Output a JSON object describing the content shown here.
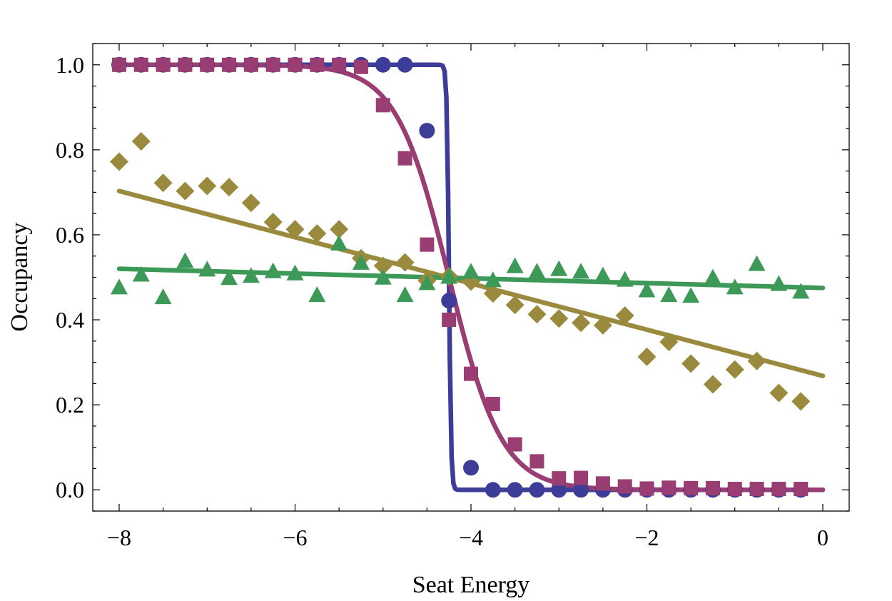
{
  "chart_data": {
    "type": "scatter",
    "title": "",
    "xlabel": "Seat Energy",
    "ylabel": "Occupancy",
    "xlim": [
      -8.3,
      0.3
    ],
    "ylim": [
      -0.05,
      1.05
    ],
    "xticks": [
      -8,
      -6,
      -4,
      -2,
      0
    ],
    "xtick_labels": [
      "−8",
      "−6",
      "−4",
      "−2",
      "0"
    ],
    "yticks": [
      0.0,
      0.2,
      0.4,
      0.6,
      0.8,
      1.0
    ],
    "ytick_labels": [
      "0.0",
      "0.2",
      "0.4",
      "0.6",
      "0.8",
      "1.0"
    ],
    "grid": false,
    "legend": "none",
    "frame_ticks": "all sides, major and minor",
    "series": [
      {
        "marker": "circle",
        "color": "#3d3d99",
        "points": [
          [
            -8,
            1.0
          ],
          [
            -7.75,
            1.0
          ],
          [
            -7.5,
            1.0
          ],
          [
            -7.25,
            1.0
          ],
          [
            -7,
            1.0
          ],
          [
            -6.75,
            1.0
          ],
          [
            -6.5,
            1.0
          ],
          [
            -6.25,
            1.0
          ],
          [
            -6,
            1.0
          ],
          [
            -5.75,
            1.0
          ],
          [
            -5.5,
            1.0
          ],
          [
            -5.25,
            1.0
          ],
          [
            -5,
            1.0
          ],
          [
            -4.75,
            1.0
          ],
          [
            -4.5,
            0.845
          ],
          [
            -4.25,
            0.445
          ],
          [
            -4,
            0.052
          ],
          [
            -3.75,
            0.0
          ],
          [
            -3.5,
            0.0
          ],
          [
            -3.25,
            0.0
          ],
          [
            -3,
            0.0
          ],
          [
            -2.75,
            0.0
          ],
          [
            -2.5,
            0.0
          ],
          [
            -2.25,
            0.0
          ],
          [
            -2,
            0.0
          ],
          [
            -1.75,
            0.0
          ],
          [
            -1.5,
            0.0
          ],
          [
            -1.25,
            0.0
          ],
          [
            -1,
            0.0
          ],
          [
            -0.75,
            0.0
          ],
          [
            -0.5,
            0.0
          ],
          [
            -0.25,
            0.0
          ]
        ],
        "fit": {
          "kind": "logistic",
          "x0": -4.25,
          "kT": 0.012,
          "top": 1.0,
          "bottom": 0.0,
          "xrange": [
            -8,
            0
          ]
        }
      },
      {
        "marker": "square",
        "color": "#993d73",
        "points": [
          [
            -8,
            1.0
          ],
          [
            -7.75,
            1.0
          ],
          [
            -7.5,
            1.0
          ],
          [
            -7.25,
            1.0
          ],
          [
            -7,
            1.0
          ],
          [
            -6.75,
            1.0
          ],
          [
            -6.5,
            1.0
          ],
          [
            -6.25,
            1.0
          ],
          [
            -6,
            1.0
          ],
          [
            -5.75,
            1.0
          ],
          [
            -5.5,
            1.0
          ],
          [
            -5.25,
            0.995
          ],
          [
            -5,
            0.905
          ],
          [
            -4.75,
            0.78
          ],
          [
            -4.5,
            0.577
          ],
          [
            -4.25,
            0.4
          ],
          [
            -4,
            0.273
          ],
          [
            -3.75,
            0.202
          ],
          [
            -3.5,
            0.107
          ],
          [
            -3.25,
            0.067
          ],
          [
            -3,
            0.027
          ],
          [
            -2.75,
            0.028
          ],
          [
            -2.5,
            0.015
          ],
          [
            -2.25,
            0.008
          ],
          [
            -2,
            0.003
          ],
          [
            -1.75,
            0.005
          ],
          [
            -1.5,
            0.004
          ],
          [
            -1.25,
            0.004
          ],
          [
            -1,
            0.002
          ],
          [
            -0.75,
            0.002
          ],
          [
            -0.5,
            0.002
          ],
          [
            -0.25,
            0.002
          ]
        ],
        "fit": {
          "kind": "logistic",
          "x0": -4.25,
          "kT": 0.3,
          "top": 1.0,
          "bottom": 0.0,
          "xrange": [
            -8,
            0
          ]
        }
      },
      {
        "marker": "diamond",
        "color": "#998a3d",
        "points": [
          [
            -8,
            0.772
          ],
          [
            -7.75,
            0.82
          ],
          [
            -7.5,
            0.722
          ],
          [
            -7.25,
            0.703
          ],
          [
            -7,
            0.715
          ],
          [
            -6.75,
            0.712
          ],
          [
            -6.5,
            0.675
          ],
          [
            -6.25,
            0.63
          ],
          [
            -6,
            0.613
          ],
          [
            -5.75,
            0.603
          ],
          [
            -5.5,
            0.613
          ],
          [
            -5.25,
            0.545
          ],
          [
            -5,
            0.527
          ],
          [
            -4.75,
            0.535
          ],
          [
            -4.5,
            0.492
          ],
          [
            -4.25,
            0.502
          ],
          [
            -4,
            0.49
          ],
          [
            -3.75,
            0.462
          ],
          [
            -3.5,
            0.435
          ],
          [
            -3.25,
            0.413
          ],
          [
            -3,
            0.403
          ],
          [
            -2.75,
            0.393
          ],
          [
            -2.5,
            0.387
          ],
          [
            -2.25,
            0.41
          ],
          [
            -2,
            0.313
          ],
          [
            -1.75,
            0.348
          ],
          [
            -1.5,
            0.297
          ],
          [
            -1.25,
            0.248
          ],
          [
            -1,
            0.283
          ],
          [
            -0.75,
            0.303
          ],
          [
            -0.5,
            0.228
          ],
          [
            -0.25,
            0.208
          ]
        ],
        "fit": {
          "kind": "linear",
          "y_at_start": 0.703,
          "y_at_end": 0.268,
          "xrange": [
            -8,
            0
          ]
        }
      },
      {
        "marker": "triangle",
        "color": "#3d9957",
        "points": [
          [
            -8,
            0.475
          ],
          [
            -7.75,
            0.505
          ],
          [
            -7.5,
            0.452
          ],
          [
            -7.25,
            0.537
          ],
          [
            -7,
            0.517
          ],
          [
            -6.75,
            0.497
          ],
          [
            -6.5,
            0.502
          ],
          [
            -6.25,
            0.513
          ],
          [
            -6,
            0.508
          ],
          [
            -5.75,
            0.457
          ],
          [
            -5.5,
            0.578
          ],
          [
            -5.25,
            0.533
          ],
          [
            -5,
            0.498
          ],
          [
            -4.75,
            0.457
          ],
          [
            -4.5,
            0.485
          ],
          [
            -4.25,
            0.5
          ],
          [
            -4,
            0.512
          ],
          [
            -3.75,
            0.492
          ],
          [
            -3.5,
            0.525
          ],
          [
            -3.25,
            0.512
          ],
          [
            -3,
            0.518
          ],
          [
            -2.75,
            0.512
          ],
          [
            -2.5,
            0.503
          ],
          [
            -2.25,
            0.493
          ],
          [
            -2,
            0.468
          ],
          [
            -1.75,
            0.457
          ],
          [
            -1.5,
            0.455
          ],
          [
            -1.25,
            0.498
          ],
          [
            -1,
            0.475
          ],
          [
            -0.75,
            0.53
          ],
          [
            -0.5,
            0.483
          ],
          [
            -0.25,
            0.465
          ]
        ],
        "fit": {
          "kind": "linear",
          "y_at_start": 0.52,
          "y_at_end": 0.475,
          "xrange": [
            -8,
            0
          ]
        }
      }
    ]
  }
}
